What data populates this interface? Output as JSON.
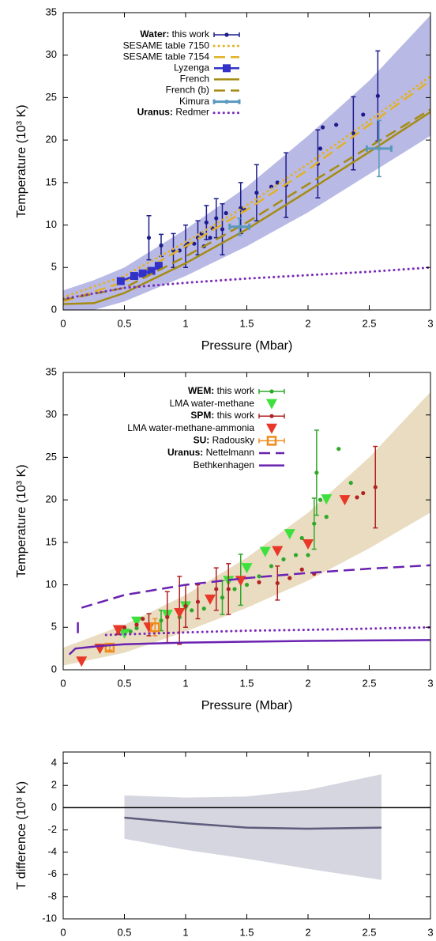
{
  "chart_data": [
    {
      "type": "scatter",
      "xlabel": "Pressure (Mbar)",
      "ylabel": "Temperature (10³ K)",
      "xlim": [
        0,
        3
      ],
      "ylim": [
        0,
        35
      ],
      "xticks": [
        0,
        0.5,
        1,
        1.5,
        2,
        2.5,
        3
      ],
      "yticks": [
        0,
        5,
        10,
        15,
        20,
        25,
        30,
        35
      ],
      "legend": "top-left",
      "band": {
        "color": "#b9b9e6",
        "x": [
          0,
          0.25,
          0.5,
          1,
          1.5,
          2,
          2.5,
          3
        ],
        "lower": [
          0,
          0,
          1,
          4,
          7.5,
          11.5,
          16,
          20.5
        ],
        "upper": [
          2.3,
          3.5,
          5,
          9.5,
          14.5,
          20.5,
          27,
          34.7
        ]
      },
      "series": [
        {
          "name": "Water: this work",
          "color": "#1c1c8c",
          "marker": "circle",
          "line": null,
          "x": [
            0.7,
            0.8,
            0.9,
            0.95,
            1.0,
            1.02,
            1.07,
            1.1,
            1.13,
            1.15,
            1.17,
            1.2,
            1.22,
            1.25,
            1.3,
            1.33,
            1.45,
            1.48,
            1.58,
            1.7,
            1.75,
            1.82,
            2.08,
            2.1,
            2.12,
            2.23,
            2.37,
            2.45,
            2.57
          ],
          "values": [
            8.5,
            7.6,
            7.0,
            7.0,
            7.5,
            7.8,
            7.8,
            8.5,
            9.0,
            7.5,
            10.3,
            8.5,
            9.6,
            10.8,
            9.5,
            11.4,
            12.0,
            11.8,
            13.8,
            14.5,
            15.0,
            14.7,
            17.2,
            19.0,
            21.5,
            21.8,
            20.8,
            23.0,
            25.2
          ],
          "errors": [
            2.6,
            1.3,
            2.0,
            null,
            2.5,
            null,
            null,
            2.0,
            null,
            null,
            2.0,
            null,
            null,
            2.3,
            3.0,
            null,
            3.0,
            null,
            3.3,
            null,
            null,
            3.8,
            4.0,
            null,
            null,
            null,
            4.3,
            null,
            5.3
          ]
        },
        {
          "name": "SESAME table 7150",
          "color": "#e2b224",
          "marker": null,
          "line": "dot",
          "x": [
            0,
            0.5,
            1,
            1.5,
            2,
            2.5,
            3
          ],
          "values": [
            1.5,
            4,
            8,
            12.3,
            17.2,
            22.3,
            27.5
          ]
        },
        {
          "name": "SESAME table 7154",
          "color": "#e2b224",
          "marker": null,
          "line": "dash",
          "x": [
            0,
            0.5,
            1,
            1.5,
            2,
            2.5,
            3
          ],
          "values": [
            1.0,
            3.3,
            7.5,
            11.8,
            16.5,
            21.8,
            27
          ]
        },
        {
          "name": "Lyzenga",
          "color": "#3232c8",
          "marker": "square",
          "line": "solid",
          "x": [
            0.47,
            0.58,
            0.65,
            0.72,
            0.78
          ],
          "values": [
            3.4,
            4.0,
            4.3,
            4.6,
            5.2
          ]
        },
        {
          "name": "French",
          "color": "#a48c12",
          "marker": null,
          "line": "solid",
          "x": [
            0,
            0.25,
            0.5,
            1,
            1.5,
            2,
            2.5,
            3
          ],
          "values": [
            0.7,
            0.8,
            2,
            5.5,
            9.5,
            14,
            18.6,
            23.3
          ]
        },
        {
          "name": "French (b)",
          "color": "#a48c12",
          "marker": null,
          "line": "dash",
          "x": [
            0,
            0.5,
            1,
            1.5,
            2,
            2.5,
            3
          ],
          "values": [
            1.2,
            2.6,
            6.3,
            10.3,
            14.8,
            19.2,
            23.6
          ]
        },
        {
          "name": "Kimura",
          "color": "#5a98bc",
          "marker": "circle",
          "line": null,
          "x": [
            1.44,
            2.58
          ],
          "values": [
            9.8,
            19
          ],
          "errors": [
            1,
            3.3
          ],
          "xerrors": [
            0.08,
            0.1
          ]
        },
        {
          "name": "Uranus: Redmer",
          "color": "#7a28b8",
          "marker": null,
          "line": "dot",
          "x": [
            0,
            0.5,
            1,
            1.5,
            2,
            2.5,
            3
          ],
          "values": [
            1.3,
            2.6,
            3.2,
            3.7,
            4.1,
            4.5,
            5.0
          ]
        }
      ]
    },
    {
      "type": "scatter",
      "xlabel": "Pressure (Mbar)",
      "ylabel": "Temperature (10³ K)",
      "xlim": [
        0,
        3
      ],
      "ylim": [
        0,
        35
      ],
      "xticks": [
        0,
        0.5,
        1,
        1.5,
        2,
        2.5,
        3
      ],
      "yticks": [
        0,
        5,
        10,
        15,
        20,
        25,
        30,
        35
      ],
      "legend": "top-left",
      "band": {
        "color": "#e9dcc0",
        "x": [
          0,
          0.5,
          1,
          1.5,
          2,
          2.5,
          3
        ],
        "lower": [
          0.5,
          2,
          4.5,
          7.3,
          10.5,
          14.3,
          18.5
        ],
        "upper": [
          2.6,
          5.3,
          8.8,
          13.2,
          18.5,
          25,
          32.7
        ]
      },
      "series": [
        {
          "name": "WEM: this work",
          "color": "#2fa82a",
          "marker": "circle",
          "line": null,
          "x": [
            0.45,
            0.55,
            0.6,
            0.8,
            0.95,
            1.05,
            1.15,
            1.3,
            1.4,
            1.45,
            1.5,
            1.6,
            1.7,
            1.8,
            1.9,
            1.95,
            2.0,
            2.05,
            2.07,
            2.1,
            2.15,
            2.25,
            2.35
          ],
          "values": [
            4.3,
            4.5,
            4.9,
            5.8,
            6.2,
            7,
            7.2,
            8.5,
            9.5,
            10.6,
            10,
            11,
            12.2,
            13,
            13.5,
            15.5,
            13.5,
            17.2,
            23.2,
            20,
            18,
            26,
            22
          ],
          "errors": [
            null,
            null,
            null,
            1.2,
            null,
            null,
            null,
            2,
            null,
            3,
            null,
            null,
            null,
            null,
            null,
            null,
            null,
            3,
            5,
            null,
            null,
            null,
            null
          ]
        },
        {
          "name": "LMA water-methane",
          "color": "#3ee03e",
          "marker": "tri",
          "line": null,
          "x": [
            0.3,
            0.5,
            0.6,
            0.85,
            1.0,
            1.35,
            1.5,
            1.65,
            1.85,
            2.15
          ],
          "values": [
            2.5,
            4.3,
            5.7,
            6.5,
            7.5,
            10.5,
            12,
            13.9,
            16,
            20.1
          ]
        },
        {
          "name": "SPM: this work",
          "color": "#b22222",
          "marker": "circle",
          "line": null,
          "x": [
            0.45,
            0.5,
            0.6,
            0.65,
            0.7,
            0.85,
            0.95,
            1.0,
            1.1,
            1.2,
            1.25,
            1.35,
            1.45,
            1.6,
            1.75,
            1.85,
            1.95,
            2.05,
            2.4,
            2.45,
            2.55
          ],
          "values": [
            4.3,
            5,
            5.3,
            6,
            5.3,
            6.2,
            7,
            7.5,
            8,
            8.2,
            9.5,
            9.5,
            10.8,
            10.3,
            10.2,
            10.8,
            11.8,
            11.3,
            20.3,
            20.8,
            21.5
          ],
          "errors": [
            null,
            null,
            null,
            null,
            1.3,
            3,
            4,
            2.5,
            2,
            null,
            2.5,
            3,
            null,
            null,
            2,
            null,
            null,
            null,
            null,
            null,
            4.8
          ]
        },
        {
          "name": "LMA water-methane-ammonia",
          "color": "#e83828",
          "marker": "tri",
          "line": null,
          "x": [
            0.15,
            0.3,
            0.45,
            0.7,
            0.95,
            1.2,
            1.45,
            1.75,
            2.0,
            2.3
          ],
          "values": [
            1,
            2.5,
            4.7,
            5,
            6.7,
            8.3,
            10.5,
            14,
            14.8,
            20
          ]
        },
        {
          "name": "SU: Radousky",
          "color": "#f08c1c",
          "marker": "open-square",
          "line": null,
          "x": [
            0.38,
            0.75
          ],
          "values": [
            2.6,
            5
          ],
          "errors": [
            0.3,
            1
          ]
        },
        {
          "name": "Uranus: Nettelmann",
          "color": "#6a22b0",
          "marker": null,
          "line": "dash",
          "x": [
            0.12,
            0.12,
            0.13,
            0.15,
            0.5,
            1,
            1.5,
            2,
            2.5,
            3
          ],
          "values": [
            4.3,
            5.6,
            null,
            7.3,
            8.8,
            10,
            10.8,
            11.4,
            11.9,
            12.3
          ]
        },
        {
          "name": "Bethkenhagen",
          "color": "#6a22b0",
          "marker": null,
          "line": "solid",
          "x": [
            0.05,
            0.1,
            0.3,
            0.5,
            1,
            1.5,
            2,
            2.5,
            3
          ],
          "values": [
            1.8,
            2.5,
            2.8,
            3.0,
            3.2,
            3.3,
            3.4,
            3.45,
            3.5
          ]
        },
        {
          "color": "#7a28b8",
          "marker": null,
          "line": "dot",
          "x": [
            0.35,
            1,
            1.5,
            2,
            2.5,
            3
          ],
          "values": [
            4.1,
            4.4,
            4.6,
            4.7,
            4.85,
            5.0
          ]
        }
      ]
    },
    {
      "type": "line",
      "xlabel": "Pressure (Mbar)",
      "ylabel": "T difference (10³ K)",
      "xlim": [
        0,
        3
      ],
      "ylim": [
        -10,
        5
      ],
      "xticks": [
        0,
        0.5,
        1,
        1.5,
        2,
        2.5,
        3
      ],
      "yticks": [
        -10,
        -8,
        -6,
        -4,
        -2,
        0,
        2,
        4
      ],
      "hline": 0,
      "band": {
        "color": "#d6d6e0",
        "x": [
          0.5,
          1,
          1.5,
          2,
          2.6
        ],
        "lower": [
          -2.8,
          -3.8,
          -4.6,
          -5.5,
          -6.5
        ],
        "upper": [
          1.1,
          0.9,
          1.0,
          1.6,
          3.0
        ]
      },
      "series": [
        {
          "color": "#5c5c7c",
          "marker": null,
          "line": "solid",
          "x": [
            0.5,
            1,
            1.5,
            2,
            2.6
          ],
          "values": [
            -0.9,
            -1.4,
            -1.8,
            -1.9,
            -1.8
          ]
        }
      ]
    }
  ]
}
